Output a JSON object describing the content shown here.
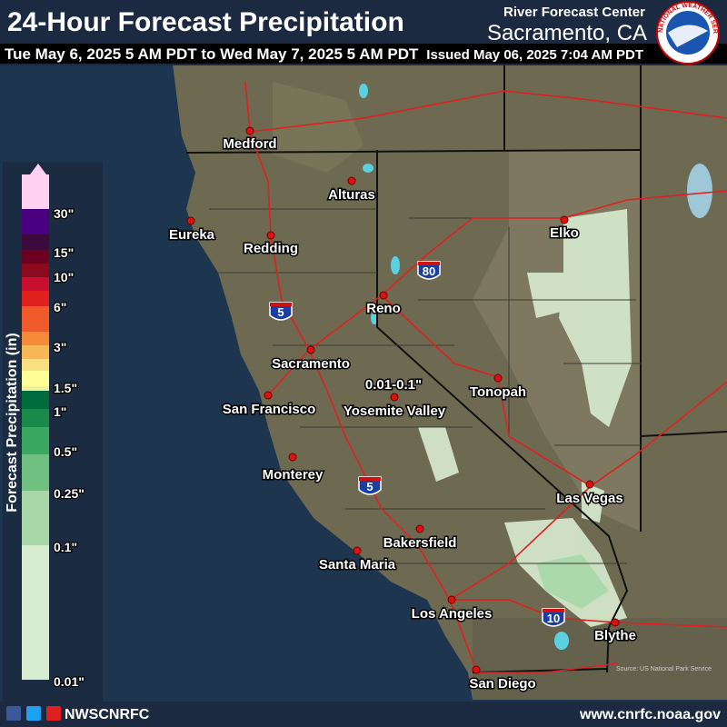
{
  "header": {
    "title": "24-Hour Forecast Precipitation",
    "center": "River Forecast Center",
    "location": "Sacramento, CA",
    "valid": "Tue May 6, 2025 5 AM PDT to Wed May 7, 2025 5 AM PDT",
    "issued": "Issued May 06, 2025 7:04 AM PDT",
    "logo": "NATIONAL WEATHER SERVICE"
  },
  "legend": {
    "title": "Forecast Precipitation (in)",
    "labels": [
      "30\"",
      "15\"",
      "10\"",
      "6\"",
      "3\"",
      "1.5\"",
      "1\"",
      "0.5\"",
      "0.25\"",
      "0.1\"",
      "0.01\""
    ]
  },
  "map": {
    "cities": [
      "Medford",
      "Alturas",
      "Eureka",
      "Redding",
      "Reno",
      "Elko",
      "Sacramento",
      "San Francisco",
      "Tonopah",
      "Yosemite Valley",
      "Monterey",
      "Las Vegas",
      "Bakersfield",
      "Santa Maria",
      "Los Angeles",
      "Blythe",
      "San Diego"
    ],
    "annotation": "0.01-0.1\"",
    "highways": [
      "5",
      "80",
      "5",
      "10"
    ],
    "source": "Source: US National Park Service"
  },
  "footer": {
    "handle": "NWSCNRFC",
    "url": "www.cnrfc.noaa.gov"
  }
}
